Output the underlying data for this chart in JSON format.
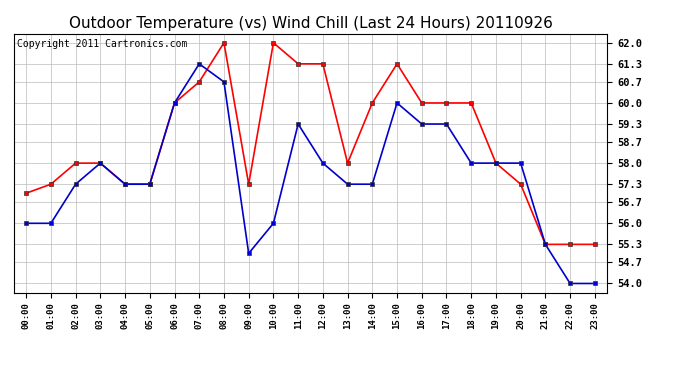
{
  "title": "Outdoor Temperature (vs) Wind Chill (Last 24 Hours) 20110926",
  "copyright": "Copyright 2011 Cartronics.com",
  "x_labels": [
    "00:00",
    "01:00",
    "02:00",
    "03:00",
    "04:00",
    "05:00",
    "06:00",
    "07:00",
    "08:00",
    "09:00",
    "10:00",
    "11:00",
    "12:00",
    "13:00",
    "14:00",
    "15:00",
    "16:00",
    "17:00",
    "18:00",
    "19:00",
    "20:00",
    "21:00",
    "22:00",
    "23:00"
  ],
  "red_data": [
    57.0,
    57.3,
    58.0,
    58.0,
    57.3,
    57.3,
    60.0,
    60.7,
    62.0,
    57.3,
    62.0,
    61.3,
    61.3,
    58.0,
    60.0,
    61.3,
    60.0,
    60.0,
    60.0,
    58.0,
    57.3,
    55.3,
    55.3,
    55.3
  ],
  "blue_data": [
    56.0,
    56.0,
    57.3,
    58.0,
    57.3,
    57.3,
    60.0,
    61.3,
    60.7,
    55.0,
    56.0,
    59.3,
    58.0,
    57.3,
    57.3,
    60.0,
    59.3,
    59.3,
    58.0,
    58.0,
    58.0,
    55.3,
    54.0,
    54.0
  ],
  "red_color": "#ff0000",
  "blue_color": "#0000cc",
  "marker": "s",
  "marker_size": 3,
  "line_width": 1.2,
  "ylim_min": 53.7,
  "ylim_max": 62.3,
  "yticks": [
    54.0,
    54.7,
    55.3,
    56.0,
    56.7,
    57.3,
    58.0,
    58.7,
    59.3,
    60.0,
    60.7,
    61.3,
    62.0
  ],
  "background_color": "#ffffff",
  "plot_bg_color": "#ffffff",
  "grid_color": "#bbbbbb",
  "title_fontsize": 11,
  "copyright_fontsize": 7,
  "tick_fontsize": 7.5,
  "xtick_fontsize": 6.5
}
